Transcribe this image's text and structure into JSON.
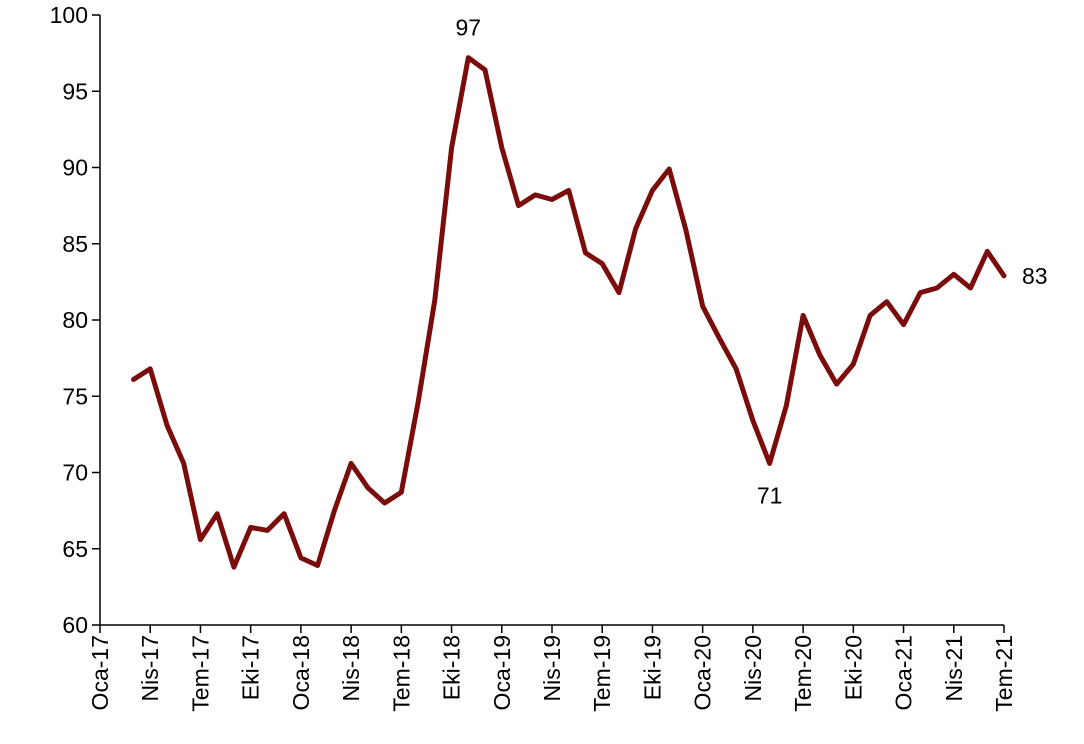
{
  "chart_data": {
    "type": "line",
    "categories": [
      "Oca-17",
      null,
      null,
      "Nis-17",
      null,
      null,
      "Tem-17",
      null,
      null,
      "Eki-17",
      null,
      null,
      "Oca-18",
      null,
      null,
      "Nis-18",
      null,
      null,
      "Tem-18",
      null,
      null,
      "Eki-18",
      null,
      null,
      "Oca-19",
      null,
      null,
      "Nis-19",
      null,
      null,
      "Tem-19",
      null,
      null,
      "Eki-19",
      null,
      null,
      "Oca-20",
      null,
      null,
      "Nis-20",
      null,
      null,
      "Tem-20",
      null,
      null,
      "Eki-20",
      null,
      null,
      "Oca-21",
      null,
      null,
      "Nis-21",
      null,
      null,
      "Tem-21"
    ],
    "values": [
      null,
      null,
      76.1,
      76.8,
      73.1,
      70.6,
      65.6,
      67.3,
      63.8,
      66.4,
      66.2,
      67.3,
      64.4,
      63.9,
      67.5,
      70.6,
      69.0,
      68.0,
      68.7,
      74.6,
      81.3,
      91.3,
      97.2,
      96.4,
      91.3,
      87.5,
      88.2,
      87.9,
      88.5,
      84.4,
      83.7,
      81.8,
      86.0,
      88.5,
      89.9,
      85.9,
      80.9,
      78.8,
      76.8,
      73.4,
      70.6,
      74.4,
      80.3,
      77.7,
      75.8,
      77.1,
      80.3,
      81.2,
      79.7,
      81.8,
      82.1,
      83.0,
      82.1,
      84.5,
      82.9
    ],
    "value_labels": [
      null,
      null,
      null,
      null,
      null,
      null,
      null,
      null,
      null,
      null,
      null,
      null,
      null,
      null,
      null,
      null,
      null,
      null,
      null,
      null,
      null,
      null,
      "97",
      null,
      null,
      null,
      null,
      null,
      null,
      null,
      null,
      null,
      null,
      null,
      null,
      null,
      null,
      null,
      null,
      null,
      "71",
      null,
      null,
      null,
      null,
      null,
      null,
      null,
      null,
      null,
      null,
      null,
      null,
      null,
      "83"
    ],
    "color": "#7b0c0c",
    "ylim": [
      60,
      100
    ],
    "yticks": [
      60,
      65,
      70,
      75,
      80,
      85,
      90,
      95,
      100
    ],
    "grid": false
  }
}
